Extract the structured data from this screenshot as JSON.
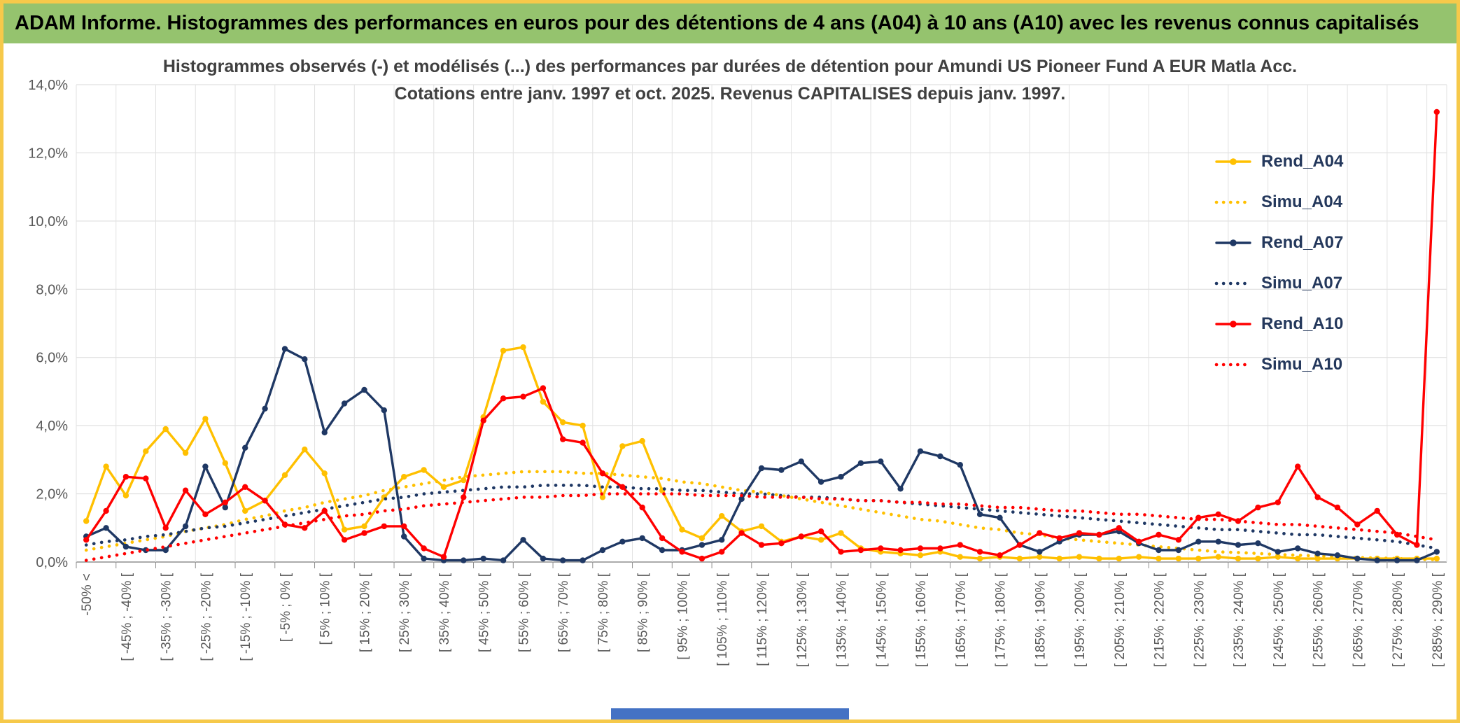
{
  "window": {
    "header_title": "ADAM Informe. Histogrammes des performances en euros pour des détentions de 4 ans (A04) à 10 ans (A10) avec les revenus connus capitalisés",
    "header_bg": "#95C36E",
    "border_color": "#F6C94A",
    "bottom_bar_color": "#4472C4"
  },
  "chart_data": {
    "type": "line",
    "title_line1": "Histogrammes observés (-) et modélisés (...) des performances par durées de détention pour Amundi US Pioneer Fund A EUR Matla Acc.",
    "title_line2": "Cotations entre janv. 1997 et oct. 2025. Revenus CAPITALISES depuis janv. 1997.",
    "grid": true,
    "legend_position": "right-inside",
    "ylim": [
      0,
      14
    ],
    "y_tick_step": 2,
    "y_tick_labels": [
      "0,0%",
      "2,0%",
      "4,0%",
      "6,0%",
      "8,0%",
      "10,0%",
      "12,0%",
      "14,0%"
    ],
    "categories": [
      "-50% <",
      "",
      "[ -45% ; -40% [",
      "",
      "[ -35% ; -30% [",
      "",
      "[ -25% ; -20% [",
      "",
      "[ -15% ; -10% [",
      "",
      "[ -5% ; 0% [",
      "",
      "[ 5% ; 10% [",
      "",
      "[ 15% ; 20% [",
      "",
      "[ 25% ; 30% [",
      "",
      "[ 35% ; 40% [",
      "",
      "[ 45% ; 50% [",
      "",
      "[ 55% ; 60% [",
      "",
      "[ 65% ; 70% [",
      "",
      "[ 75% ; 80% [",
      "",
      "[ 85% ; 90% [",
      "",
      "[ 95% ; 100% [",
      "",
      "[ 105% ; 110% [",
      "",
      "[ 115% ; 120% [",
      "",
      "[ 125% ; 130% [",
      "",
      "[ 135% ; 140% [",
      "",
      "[ 145% ; 150% [",
      "",
      "[ 155% ; 160% [",
      "",
      "[ 165% ; 170% [",
      "",
      "[ 175% ; 180% [",
      "",
      "[ 185% ; 190% [",
      "",
      "[ 195% ; 200% [",
      "",
      "[ 205% ; 210% [",
      "",
      "[ 215% ; 220% [",
      "",
      "[ 225% ; 230% [",
      "",
      "[ 235% ; 240% [",
      "",
      "[ 245% ; 250% [",
      "",
      "[ 255% ; 260% [",
      "",
      "[ 265% ; 270% [",
      "",
      "[ 275% ; 280% [",
      "",
      "[ 285% ; 290% ["
    ],
    "series": [
      {
        "name": "Rend_A04",
        "color": "#FFC000",
        "style": "solid",
        "marker": true,
        "values": [
          1.2,
          2.8,
          1.95,
          3.25,
          3.9,
          3.2,
          4.2,
          2.9,
          1.5,
          1.8,
          2.55,
          3.3,
          2.6,
          0.95,
          1.05,
          1.9,
          2.5,
          2.7,
          2.2,
          2.4,
          4.25,
          6.2,
          6.3,
          4.7,
          4.1,
          4.0,
          1.9,
          3.4,
          3.55,
          2.1,
          0.95,
          0.7,
          1.35,
          0.9,
          1.05,
          0.6,
          0.75,
          0.65,
          0.85,
          0.4,
          0.3,
          0.25,
          0.2,
          0.3,
          0.15,
          0.1,
          0.15,
          0.1,
          0.15,
          0.1,
          0.15,
          0.1,
          0.1,
          0.15,
          0.1,
          0.1,
          0.1,
          0.15,
          0.1,
          0.1,
          0.15,
          0.1,
          0.1,
          0.1,
          0.1,
          0.1,
          0.1,
          0.1,
          0.1
        ]
      },
      {
        "name": "Simu_A04",
        "color": "#FFC000",
        "style": "dotted",
        "marker": false,
        "values": [
          0.35,
          0.45,
          0.55,
          0.65,
          0.75,
          0.9,
          1.0,
          1.1,
          1.25,
          1.35,
          1.5,
          1.6,
          1.75,
          1.85,
          1.95,
          2.1,
          2.2,
          2.3,
          2.4,
          2.5,
          2.55,
          2.6,
          2.65,
          2.65,
          2.65,
          2.6,
          2.6,
          2.55,
          2.5,
          2.45,
          2.35,
          2.3,
          2.2,
          2.1,
          2.05,
          1.95,
          1.85,
          1.75,
          1.65,
          1.55,
          1.45,
          1.35,
          1.25,
          1.2,
          1.1,
          1.0,
          0.95,
          0.85,
          0.8,
          0.7,
          0.65,
          0.6,
          0.55,
          0.5,
          0.45,
          0.4,
          0.35,
          0.3,
          0.28,
          0.25,
          0.22,
          0.2,
          0.18,
          0.15,
          0.13,
          0.12,
          0.1,
          0.08,
          0.07
        ]
      },
      {
        "name": "Rend_A07",
        "color": "#1F3864",
        "style": "solid",
        "marker": true,
        "values": [
          0.75,
          1.0,
          0.45,
          0.35,
          0.35,
          1.05,
          2.8,
          1.6,
          3.35,
          4.5,
          6.25,
          5.95,
          3.8,
          4.65,
          5.05,
          4.45,
          0.75,
          0.1,
          0.05,
          0.05,
          0.1,
          0.05,
          0.65,
          0.1,
          0.05,
          0.05,
          0.35,
          0.6,
          0.7,
          0.35,
          0.35,
          0.5,
          0.65,
          1.85,
          2.75,
          2.7,
          2.95,
          2.35,
          2.5,
          2.9,
          2.95,
          2.15,
          3.25,
          3.1,
          2.85,
          1.4,
          1.3,
          0.5,
          0.3,
          0.6,
          0.8,
          0.8,
          0.9,
          0.55,
          0.35,
          0.35,
          0.6,
          0.6,
          0.5,
          0.55,
          0.3,
          0.4,
          0.25,
          0.2,
          0.1,
          0.05,
          0.05,
          0.05,
          0.3
        ]
      },
      {
        "name": "Simu_A07",
        "color": "#1F3864",
        "style": "dotted",
        "marker": false,
        "values": [
          0.5,
          0.6,
          0.65,
          0.75,
          0.8,
          0.9,
          1.0,
          1.05,
          1.15,
          1.25,
          1.35,
          1.45,
          1.55,
          1.65,
          1.75,
          1.85,
          1.9,
          2.0,
          2.05,
          2.1,
          2.15,
          2.2,
          2.2,
          2.25,
          2.25,
          2.25,
          2.2,
          2.2,
          2.15,
          2.15,
          2.1,
          2.1,
          2.05,
          2.0,
          2.0,
          1.95,
          1.9,
          1.9,
          1.85,
          1.8,
          1.8,
          1.75,
          1.7,
          1.65,
          1.6,
          1.55,
          1.5,
          1.45,
          1.4,
          1.35,
          1.3,
          1.25,
          1.2,
          1.15,
          1.1,
          1.05,
          1.0,
          0.95,
          0.95,
          0.9,
          0.85,
          0.8,
          0.8,
          0.75,
          0.7,
          0.65,
          0.6,
          0.5,
          0.4
        ]
      },
      {
        "name": "Rend_A10",
        "color": "#FF0000",
        "style": "solid",
        "marker": true,
        "values": [
          0.65,
          1.5,
          2.5,
          2.45,
          1.0,
          2.1,
          1.4,
          1.75,
          2.2,
          1.8,
          1.1,
          1.0,
          1.5,
          0.65,
          0.85,
          1.05,
          1.05,
          0.4,
          0.15,
          1.9,
          4.15,
          4.8,
          4.85,
          5.1,
          3.6,
          3.5,
          2.6,
          2.2,
          1.6,
          0.7,
          0.3,
          0.1,
          0.3,
          0.85,
          0.5,
          0.55,
          0.75,
          0.9,
          0.3,
          0.35,
          0.4,
          0.35,
          0.4,
          0.4,
          0.5,
          0.3,
          0.2,
          0.5,
          0.85,
          0.7,
          0.85,
          0.8,
          1.0,
          0.6,
          0.8,
          0.65,
          1.3,
          1.4,
          1.2,
          1.6,
          1.75,
          2.8,
          1.9,
          1.6,
          1.1,
          1.5,
          0.8,
          0.5,
          13.2
        ]
      },
      {
        "name": "Simu_A10",
        "color": "#FF0000",
        "style": "dotted",
        "marker": false,
        "values": [
          0.05,
          0.15,
          0.25,
          0.35,
          0.45,
          0.55,
          0.65,
          0.75,
          0.85,
          0.95,
          1.05,
          1.15,
          1.25,
          1.35,
          1.4,
          1.5,
          1.55,
          1.65,
          1.7,
          1.75,
          1.8,
          1.85,
          1.9,
          1.9,
          1.95,
          1.95,
          2.0,
          2.0,
          2.0,
          2.0,
          2.0,
          1.95,
          1.95,
          1.95,
          1.9,
          1.9,
          1.9,
          1.85,
          1.85,
          1.8,
          1.8,
          1.75,
          1.75,
          1.7,
          1.7,
          1.65,
          1.6,
          1.6,
          1.55,
          1.5,
          1.5,
          1.45,
          1.4,
          1.4,
          1.35,
          1.3,
          1.25,
          1.25,
          1.2,
          1.15,
          1.1,
          1.1,
          1.05,
          1.0,
          0.95,
          0.9,
          0.85,
          0.75,
          0.65
        ]
      }
    ]
  }
}
